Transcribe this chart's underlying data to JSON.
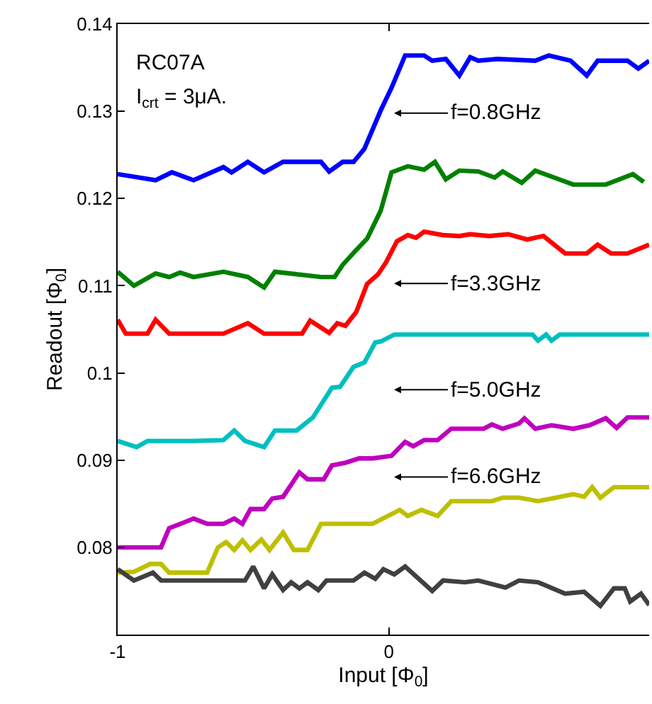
{
  "chart_data": {
    "type": "line",
    "xlabel": "Input [Φ$_{0}$]",
    "ylabel": "Readout [Φ$_{0}$]",
    "xlim": [
      -1,
      0.96
    ],
    "ylim": [
      0.07,
      0.14
    ],
    "xticks": [
      -1,
      0
    ],
    "yticks": [
      0.08,
      0.09,
      0.1,
      0.11,
      0.12,
      0.13,
      0.14
    ],
    "grid": false,
    "marker": "none",
    "line_style": "solid",
    "annotations": [
      "RC07A",
      "I$_{crt}$ = 3μA.",
      "f=0.8GHz",
      "f=3.3GHz",
      "f=5.0GHz",
      "f=6.6GHz"
    ],
    "series": [
      {
        "color": "#0000ff",
        "x": [
          -1,
          -0.86,
          -0.8,
          -0.72,
          -0.61,
          -0.58,
          -0.52,
          -0.46,
          -0.39,
          -0.25,
          -0.22,
          -0.17,
          -0.13,
          -0.09,
          -0.03,
          0.01,
          0.06,
          0.13,
          0.16,
          0.21,
          0.26,
          0.3,
          0.33,
          0.4,
          0.54,
          0.59,
          0.67,
          0.73,
          0.77,
          0.88,
          0.92,
          0.96
        ],
        "values": [
          0.1228,
          0.1221,
          0.123,
          0.1221,
          0.1236,
          0.123,
          0.1242,
          0.123,
          0.1242,
          0.1242,
          0.1231,
          0.1242,
          0.1242,
          0.1257,
          0.1301,
          0.1327,
          0.1364,
          0.1364,
          0.1358,
          0.136,
          0.1341,
          0.1362,
          0.1358,
          0.136,
          0.1358,
          0.1364,
          0.1358,
          0.1341,
          0.1358,
          0.1358,
          0.1349,
          0.1358
        ]
      },
      {
        "color": "#008000",
        "x": [
          -1,
          -0.94,
          -0.86,
          -0.81,
          -0.77,
          -0.72,
          -0.61,
          -0.52,
          -0.46,
          -0.42,
          -0.25,
          -0.2,
          -0.17,
          -0.12,
          -0.08,
          -0.03,
          0.01,
          0.07,
          0.13,
          0.17,
          0.21,
          0.26,
          0.33,
          0.39,
          0.42,
          0.49,
          0.54,
          0.68,
          0.8,
          0.85,
          0.9,
          0.94
        ],
        "values": [
          0.1116,
          0.11,
          0.1114,
          0.111,
          0.1115,
          0.111,
          0.1116,
          0.111,
          0.1098,
          0.1116,
          0.111,
          0.111,
          0.1124,
          0.1141,
          0.1154,
          0.1186,
          0.123,
          0.1237,
          0.1233,
          0.1242,
          0.1222,
          0.1232,
          0.1231,
          0.1224,
          0.1231,
          0.1218,
          0.1232,
          0.1216,
          0.1216,
          0.1222,
          0.1228,
          0.1219
        ]
      },
      {
        "color": "#ff0000",
        "x": [
          -1,
          -0.97,
          -0.89,
          -0.86,
          -0.81,
          -0.61,
          -0.52,
          -0.46,
          -0.32,
          -0.29,
          -0.22,
          -0.19,
          -0.16,
          -0.12,
          -0.08,
          -0.04,
          -0.01,
          0.03,
          0.07,
          0.1,
          0.13,
          0.2,
          0.26,
          0.3,
          0.37,
          0.44,
          0.51,
          0.57,
          0.65,
          0.73,
          0.77,
          0.82,
          0.88,
          0.96
        ],
        "values": [
          0.1061,
          0.1045,
          0.1045,
          0.1061,
          0.1045,
          0.1045,
          0.1057,
          0.1045,
          0.1045,
          0.106,
          0.1046,
          0.1057,
          0.1054,
          0.107,
          0.1102,
          0.1113,
          0.1127,
          0.1151,
          0.1158,
          0.1155,
          0.1162,
          0.1158,
          0.1157,
          0.1159,
          0.1157,
          0.1159,
          0.1153,
          0.1157,
          0.1137,
          0.1137,
          0.1147,
          0.1137,
          0.1137,
          0.1147
        ]
      },
      {
        "color": "#00bfbf",
        "x": [
          -1,
          -0.93,
          -0.89,
          -0.72,
          -0.61,
          -0.57,
          -0.53,
          -0.46,
          -0.42,
          -0.34,
          -0.28,
          -0.21,
          -0.18,
          -0.13,
          -0.09,
          -0.05,
          -0.03,
          0.02,
          0.53,
          0.55,
          0.58,
          0.6,
          0.63,
          0.96
        ],
        "values": [
          0.0922,
          0.0915,
          0.0922,
          0.0922,
          0.0923,
          0.0934,
          0.0922,
          0.0915,
          0.0934,
          0.0934,
          0.0949,
          0.0983,
          0.0984,
          0.1007,
          0.1012,
          0.1035,
          0.1036,
          0.1044,
          0.1044,
          0.1037,
          0.1044,
          0.1037,
          0.1044,
          0.1044
        ]
      },
      {
        "color": "#bf00bf",
        "x": [
          -1,
          -0.84,
          -0.81,
          -0.76,
          -0.72,
          -0.67,
          -0.61,
          -0.57,
          -0.54,
          -0.51,
          -0.46,
          -0.43,
          -0.39,
          -0.33,
          -0.3,
          -0.24,
          -0.21,
          -0.16,
          -0.11,
          -0.06,
          0.01,
          0.06,
          0.09,
          0.13,
          0.18,
          0.23,
          0.35,
          0.38,
          0.42,
          0.48,
          0.5,
          0.54,
          0.6,
          0.68,
          0.74,
          0.8,
          0.84,
          0.88,
          0.96
        ],
        "values": [
          0.08,
          0.08,
          0.0822,
          0.0828,
          0.0833,
          0.0827,
          0.0827,
          0.0833,
          0.0827,
          0.0844,
          0.0844,
          0.0856,
          0.0858,
          0.0886,
          0.0878,
          0.0878,
          0.0894,
          0.0897,
          0.0902,
          0.0902,
          0.0905,
          0.0921,
          0.0916,
          0.0923,
          0.0923,
          0.0936,
          0.0936,
          0.0941,
          0.0936,
          0.0942,
          0.0948,
          0.0936,
          0.094,
          0.0936,
          0.094,
          0.0948,
          0.0937,
          0.0949,
          0.0949
        ]
      },
      {
        "color": "#bfbf00",
        "x": [
          -1,
          -0.94,
          -0.88,
          -0.84,
          -0.81,
          -0.67,
          -0.63,
          -0.6,
          -0.57,
          -0.54,
          -0.51,
          -0.47,
          -0.44,
          -0.39,
          -0.35,
          -0.3,
          -0.25,
          -0.06,
          0.04,
          0.07,
          0.12,
          0.18,
          0.23,
          0.38,
          0.42,
          0.48,
          0.55,
          0.6,
          0.68,
          0.72,
          0.75,
          0.78,
          0.83,
          0.96
        ],
        "values": [
          0.0771,
          0.0772,
          0.0781,
          0.0781,
          0.0771,
          0.0771,
          0.08,
          0.0806,
          0.0797,
          0.0808,
          0.0797,
          0.0809,
          0.0797,
          0.0817,
          0.0797,
          0.0797,
          0.0827,
          0.0827,
          0.0843,
          0.0836,
          0.0843,
          0.0836,
          0.0853,
          0.0853,
          0.0857,
          0.0857,
          0.0853,
          0.0856,
          0.0861,
          0.0858,
          0.0869,
          0.0857,
          0.0869,
          0.0869
        ]
      },
      {
        "color": "#404040",
        "x": [
          -1,
          -0.94,
          -0.87,
          -0.84,
          -0.53,
          -0.5,
          -0.46,
          -0.43,
          -0.39,
          -0.36,
          -0.33,
          -0.3,
          -0.26,
          -0.23,
          -0.13,
          -0.09,
          -0.05,
          -0.02,
          0.02,
          0.06,
          0.16,
          0.2,
          0.28,
          0.33,
          0.43,
          0.48,
          0.55,
          0.65,
          0.72,
          0.78,
          0.83,
          0.87,
          0.89,
          0.93,
          0.96
        ],
        "values": [
          0.0775,
          0.0762,
          0.0771,
          0.0762,
          0.0762,
          0.0778,
          0.0753,
          0.0769,
          0.0751,
          0.076,
          0.0753,
          0.076,
          0.0751,
          0.0762,
          0.0762,
          0.0771,
          0.0764,
          0.0775,
          0.0769,
          0.0778,
          0.075,
          0.0762,
          0.076,
          0.0762,
          0.0754,
          0.0762,
          0.076,
          0.0747,
          0.0749,
          0.0733,
          0.0753,
          0.0753,
          0.0738,
          0.0747,
          0.0734
        ]
      }
    ]
  }
}
